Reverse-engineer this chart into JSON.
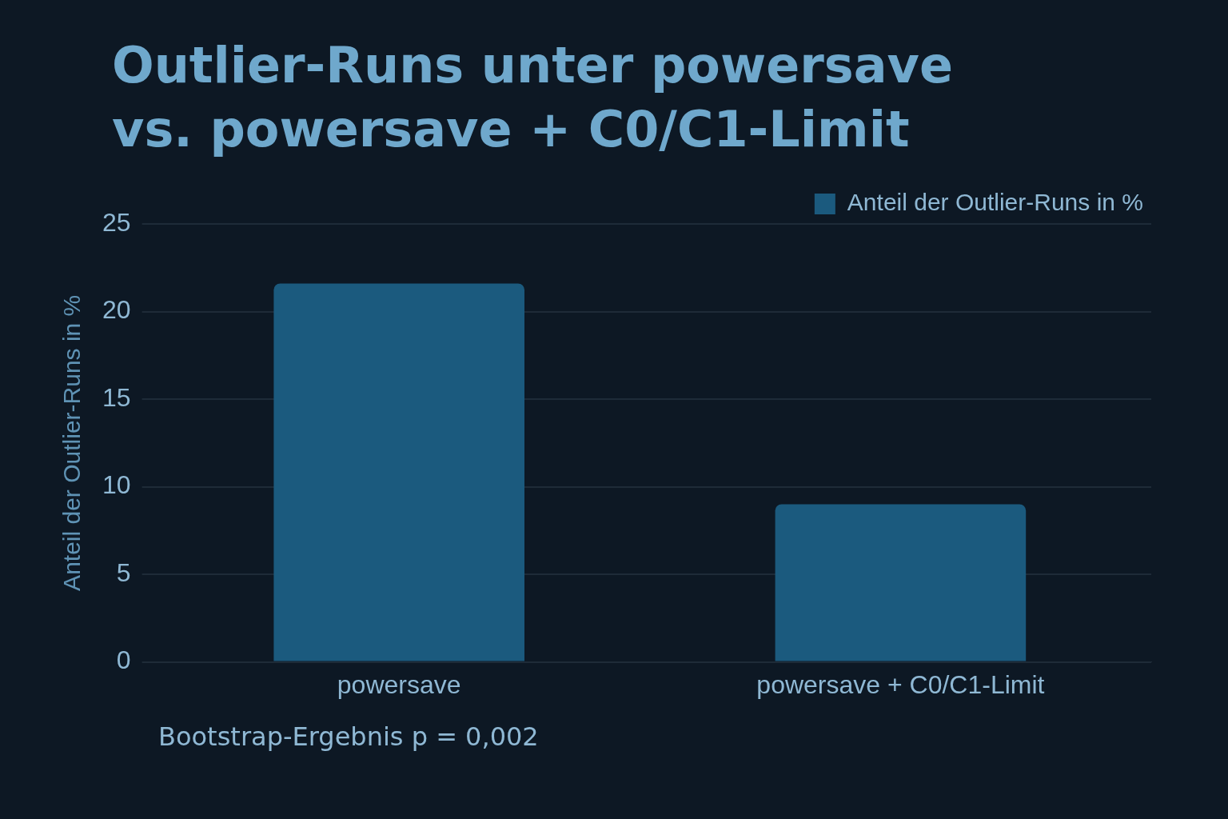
{
  "chart_data": {
    "type": "bar",
    "title": "Outlier-Runs unter powersave vs. powersave + C0/C1-Limit",
    "ylabel": "Anteil der Outlier-Runs in %",
    "categories": [
      "powersave",
      "powersave + C0/C1-Limit"
    ],
    "series": [
      {
        "name": "Anteil der Outlier-Runs in %",
        "color": "#1b5a7e",
        "values": [
          21.6,
          9.0
        ]
      }
    ],
    "ylim": [
      0,
      25
    ],
    "yticks": [
      0,
      5,
      10,
      15,
      20,
      25
    ],
    "grid": "y",
    "legend": "top right",
    "annotations": [
      "Bootstrap-Ergebnis p = 0,002"
    ]
  }
}
